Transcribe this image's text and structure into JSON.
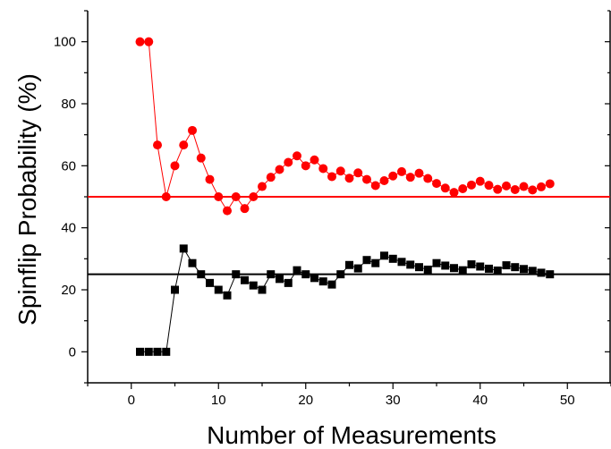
{
  "chart_data": {
    "type": "scatter",
    "title": "",
    "xlabel": "Number of Measurements",
    "ylabel": "Spinflip Probability (%)",
    "xlim": [
      -5,
      55
    ],
    "ylim": [
      -10,
      110
    ],
    "x_ticks": [
      0,
      10,
      20,
      30,
      40,
      50
    ],
    "y_ticks": [
      0,
      20,
      40,
      60,
      80,
      100
    ],
    "grid": false,
    "legend": "none",
    "series": [
      {
        "marker": "circle",
        "color": "#ff0000",
        "x": [
          1,
          2,
          3,
          4,
          5,
          6,
          7,
          8,
          9,
          10,
          11,
          12,
          13,
          14,
          15,
          16,
          17,
          18,
          19,
          20,
          21,
          22,
          23,
          24,
          25,
          26,
          27,
          28,
          29,
          30,
          31,
          32,
          33,
          34,
          35,
          36,
          37,
          38,
          39,
          40,
          41,
          42,
          43,
          44,
          45,
          46,
          47,
          48
        ],
        "y": [
          100,
          100,
          66.7,
          50,
          60,
          66.7,
          71.4,
          62.5,
          55.6,
          50,
          45.5,
          50,
          46.2,
          50,
          53.3,
          56.3,
          58.8,
          61.1,
          63.2,
          60,
          61.9,
          59.1,
          56.5,
          58.3,
          56,
          57.7,
          55.6,
          53.6,
          55.2,
          56.7,
          58.1,
          56.3,
          57.6,
          55.9,
          54.3,
          52.8,
          51.4,
          52.6,
          53.8,
          55,
          53.7,
          52.4,
          53.5,
          52.3,
          53.3,
          52.2,
          53.2,
          54.2
        ]
      },
      {
        "marker": "square",
        "color": "#000000",
        "x": [
          1,
          2,
          3,
          4,
          5,
          6,
          7,
          8,
          9,
          10,
          11,
          12,
          13,
          14,
          15,
          16,
          17,
          18,
          19,
          20,
          21,
          22,
          23,
          24,
          25,
          26,
          27,
          28,
          29,
          30,
          31,
          32,
          33,
          34,
          35,
          36,
          37,
          38,
          39,
          40,
          41,
          42,
          43,
          44,
          45,
          46,
          47,
          48
        ],
        "y": [
          0,
          0,
          0,
          0,
          20,
          33.3,
          28.6,
          25,
          22.2,
          20,
          18.2,
          25,
          23.1,
          21.4,
          20,
          25,
          23.5,
          22.2,
          26.3,
          25,
          23.8,
          22.7,
          21.7,
          25,
          28,
          26.9,
          29.6,
          28.6,
          31,
          30,
          29,
          28.1,
          27.3,
          26.5,
          28.6,
          27.8,
          27,
          26.3,
          28.2,
          27.5,
          26.8,
          26.2,
          27.9,
          27.3,
          26.7,
          26.1,
          25.5,
          25
        ]
      }
    ],
    "reference_lines": [
      {
        "y": 50,
        "color": "#ff0000"
      },
      {
        "y": 25,
        "color": "#000000"
      }
    ]
  }
}
